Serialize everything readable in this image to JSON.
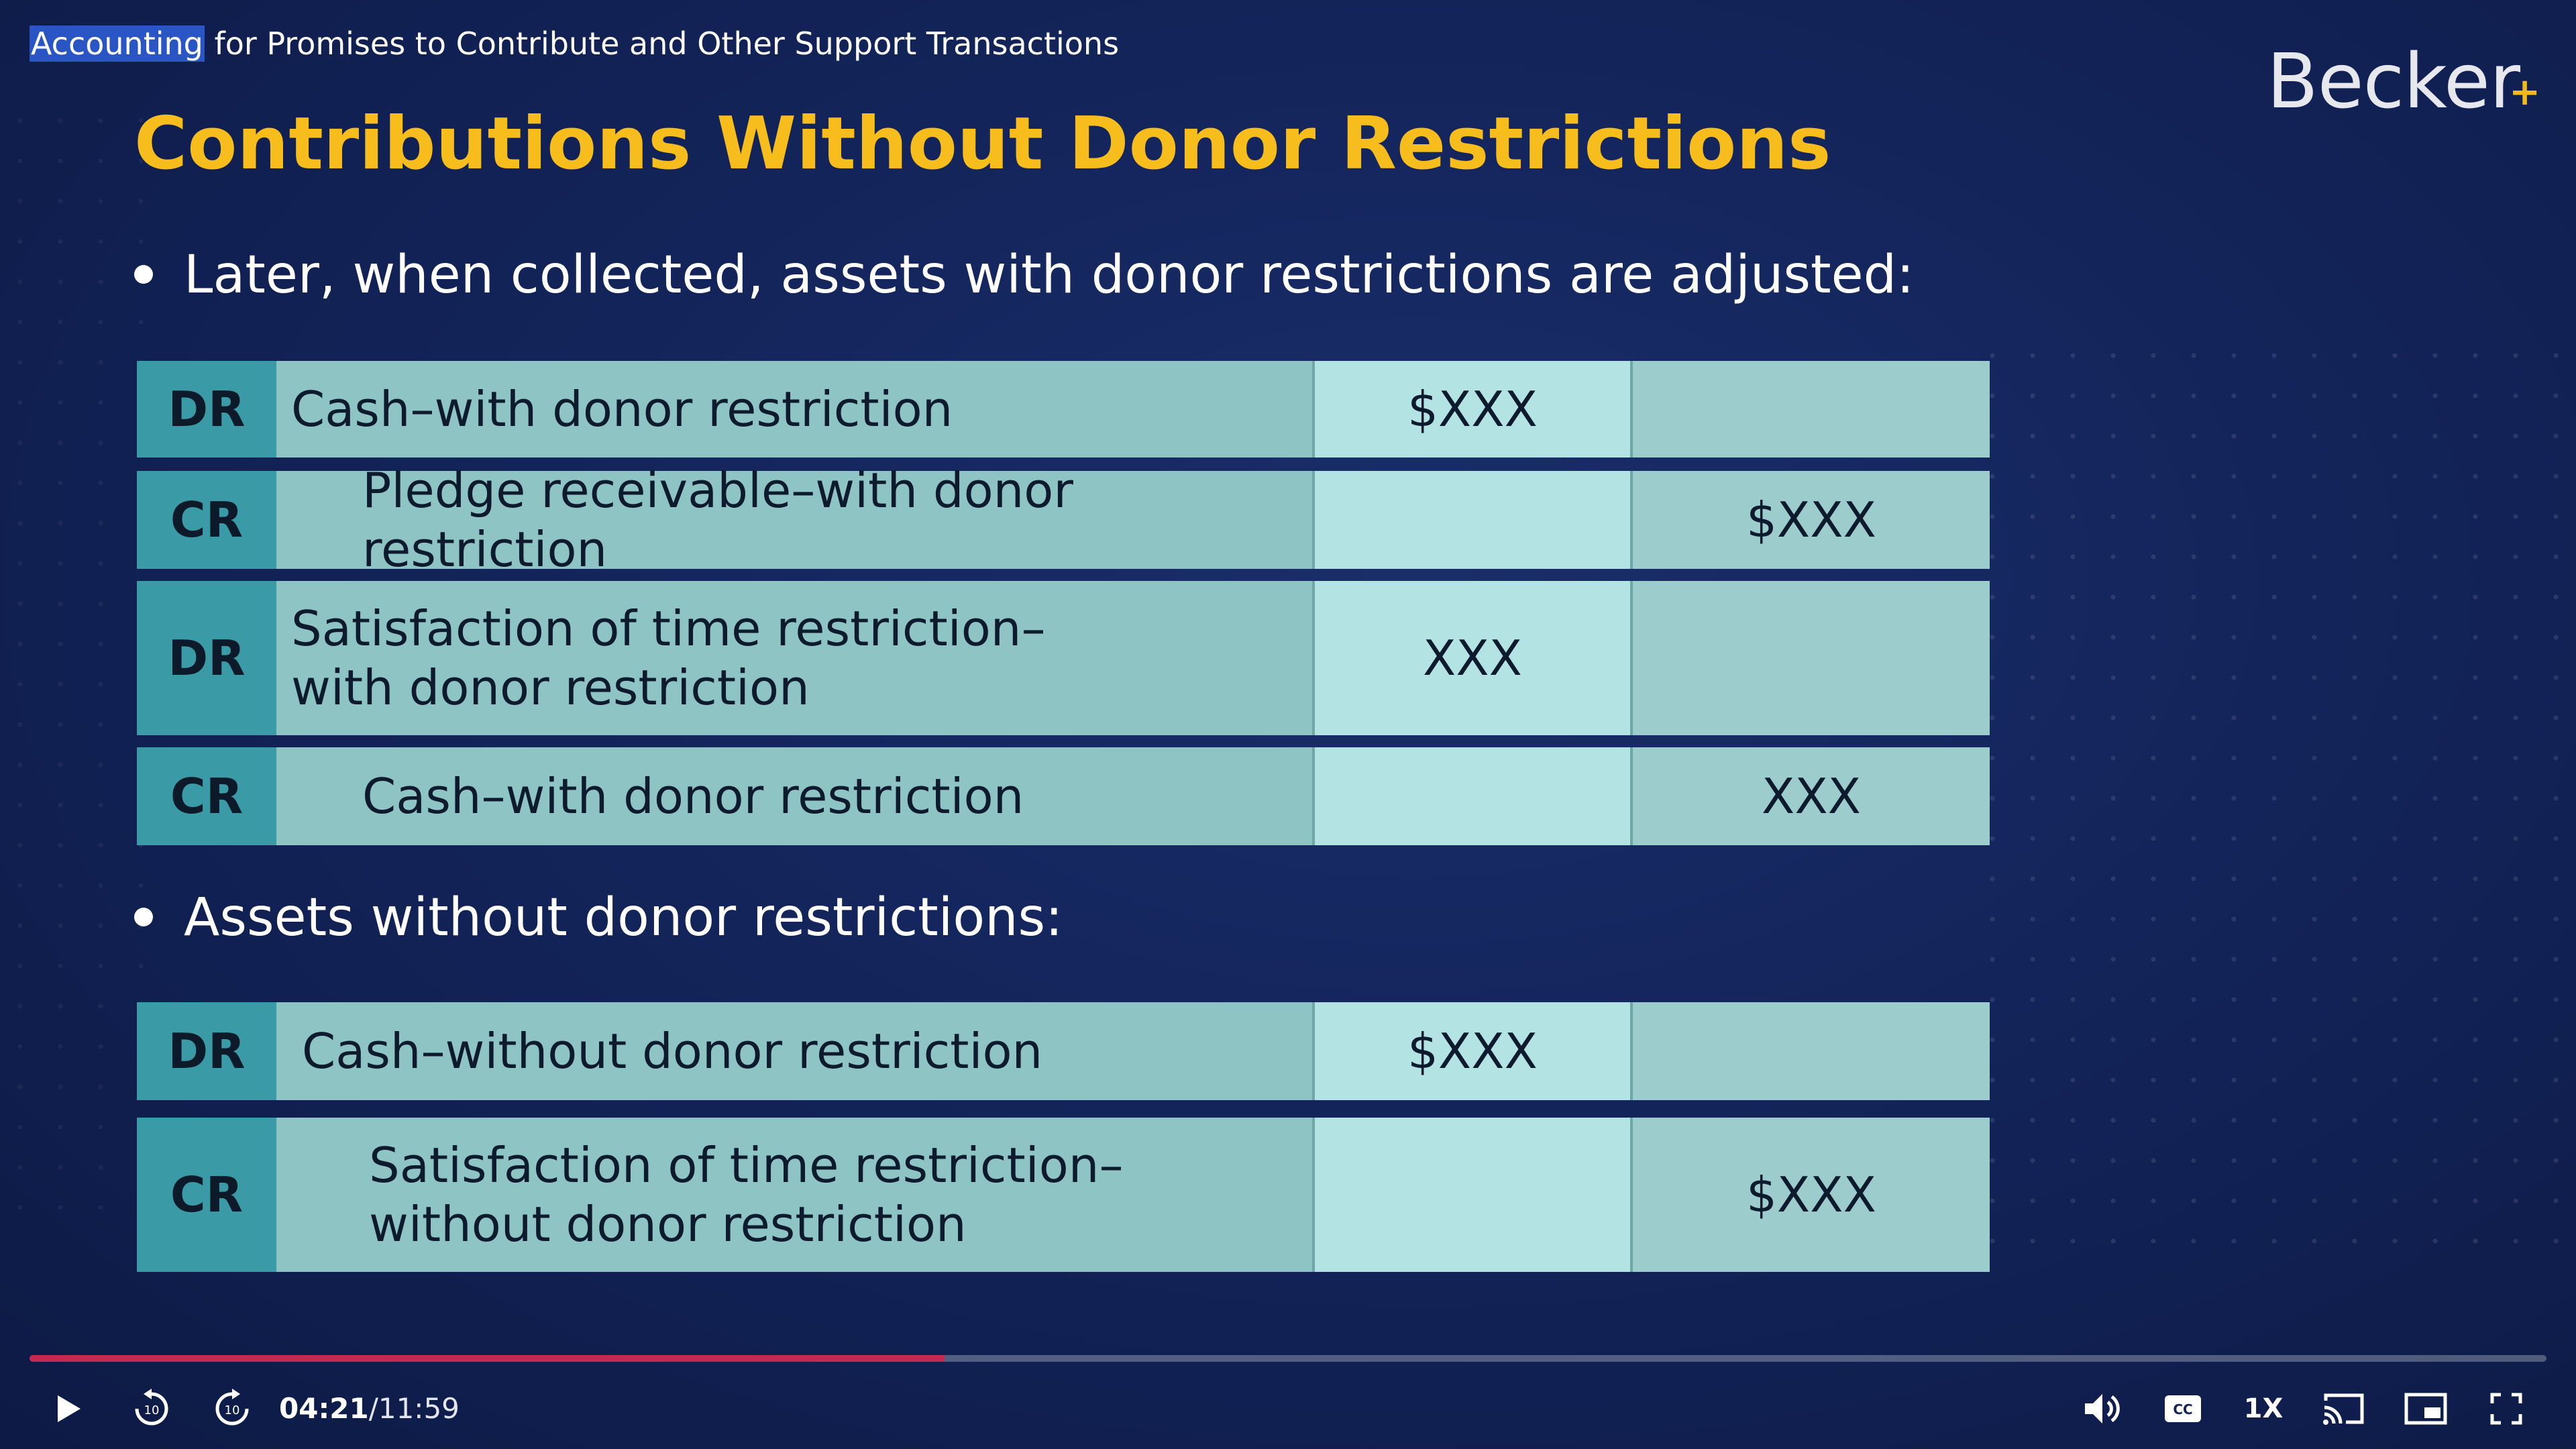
{
  "course_title": {
    "highlighted": "Accounting",
    "rest": " for Promises to Contribute and Other Support Transactions"
  },
  "logo": {
    "text": "Becker",
    "mark": "+"
  },
  "slide": {
    "title": "Contributions Without Donor Restrictions",
    "bullet_1": "Later, when collected, assets with donor restrictions are adjusted:",
    "bullet_2": "Assets without donor restrictions:",
    "entries": [
      {
        "code": "DR",
        "account_line1": "Cash–with donor restriction",
        "account_line2": "",
        "debit": "$XXX",
        "credit": ""
      },
      {
        "code": "CR",
        "account_line1": "Pledge receivable–with donor restriction",
        "account_line2": "",
        "debit": "",
        "credit": "$XXX"
      },
      {
        "code": "DR",
        "account_line1": "Satisfaction of time restriction–",
        "account_line2": "with donor restriction",
        "debit": "XXX",
        "credit": ""
      },
      {
        "code": "CR",
        "account_line1": "Cash–with donor restriction",
        "account_line2": "",
        "debit": "",
        "credit": "XXX"
      },
      {
        "code": "DR",
        "account_line1": "Cash–without donor restriction",
        "account_line2": "",
        "debit": "$XXX",
        "credit": ""
      },
      {
        "code": "CR",
        "account_line1": "Satisfaction of time restriction–",
        "account_line2": "without donor restriction",
        "debit": "",
        "credit": "$XXX"
      }
    ]
  },
  "player": {
    "current_time": "04:21",
    "total_time": "/11:59",
    "progress_fraction": 0.3635,
    "speed": "1X",
    "icons": [
      "play-icon",
      "rewind-10-icon",
      "forward-10-icon",
      "volume-icon",
      "captions-icon",
      "cast-icon",
      "picture-in-picture-icon",
      "fullscreen-icon"
    ],
    "colors": {
      "progress": "#c22a55",
      "title": "#f6bd1c",
      "highlight": "#2a55c4"
    }
  }
}
